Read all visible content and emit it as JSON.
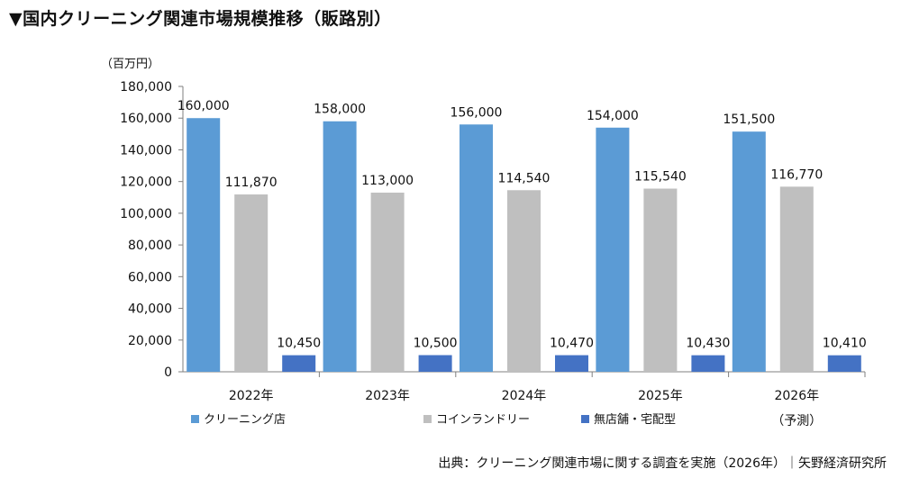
{
  "title": "▼国内クリーニング関連市場規模推移（販路別）",
  "source": "出典：クリーニング関連市場に関する調査を実施（2026年）｜矢野経済研究所",
  "chart_data": {
    "type": "bar",
    "unit_label": "（百万円）",
    "categories": [
      "2022年",
      "2023年",
      "2024年",
      "2025年",
      "2026年"
    ],
    "category_notes": [
      "",
      "",
      "",
      "",
      "（予測）"
    ],
    "ylim": [
      0,
      180000
    ],
    "yticks": [
      0,
      20000,
      40000,
      60000,
      80000,
      100000,
      120000,
      140000,
      160000,
      180000
    ],
    "grid": false,
    "legend_position": "bottom",
    "series": [
      {
        "name": "クリーニング店",
        "color": "#5b9bd5",
        "values": [
          160000,
          158000,
          156000,
          154000,
          151500
        ]
      },
      {
        "name": "コインランドリー",
        "color": "#bfbfbf",
        "values": [
          111870,
          113000,
          114540,
          115540,
          116770
        ]
      },
      {
        "name": "無店舗・宅配型",
        "color": "#4472c4",
        "values": [
          10450,
          10500,
          10470,
          10430,
          10410
        ]
      }
    ]
  }
}
